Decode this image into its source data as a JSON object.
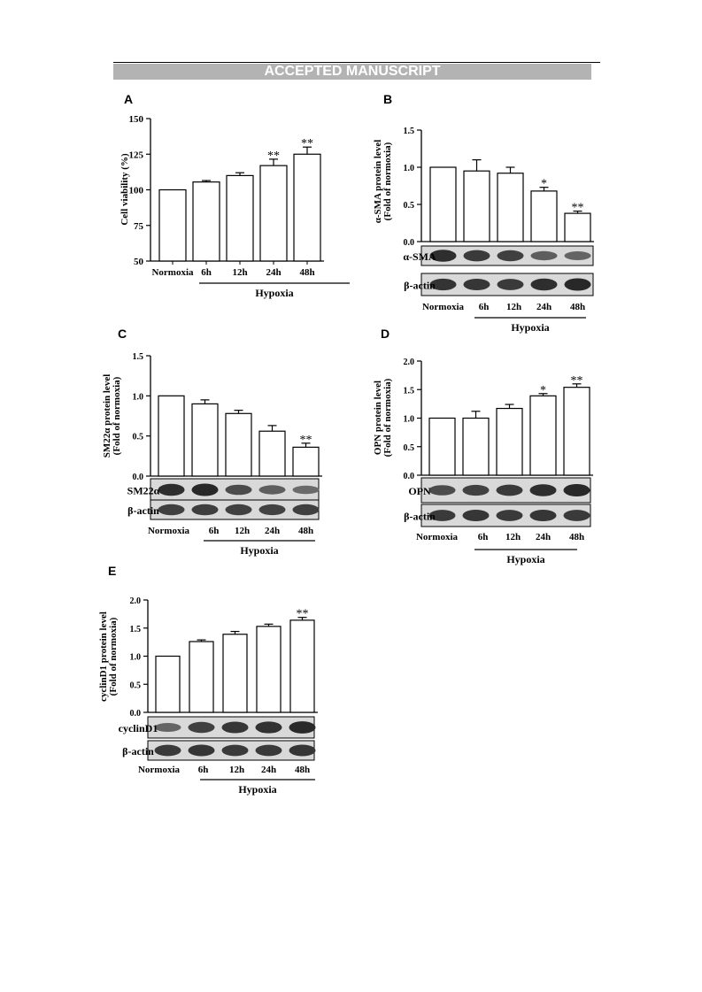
{
  "header": {
    "banner": "ACCEPTED MANUSCRIPT"
  },
  "chart_data": [
    {
      "panel": "A",
      "type": "bar",
      "ylabel": "Cell viability (%)",
      "ylim": [
        50,
        150
      ],
      "yticks": [
        "50",
        "75",
        "100",
        "125",
        "150"
      ],
      "categories": [
        "Normoxia",
        "6h",
        "12h",
        "24h",
        "48h"
      ],
      "values": [
        100,
        105.5,
        110,
        117,
        125
      ],
      "errors": [
        0,
        1,
        2,
        4.5,
        5
      ],
      "significance": [
        "",
        "",
        "",
        "**",
        "**"
      ],
      "group_label": "Hypoxia"
    },
    {
      "panel": "B",
      "type": "bar",
      "ylabel": [
        "α-SMA protein level",
        "(Fold of normoxia)"
      ],
      "ylim": [
        0,
        1.5
      ],
      "yticks": [
        "0.0",
        "0.5",
        "1.0",
        "1.5"
      ],
      "categories": [
        "Normoxia",
        "6h",
        "12h",
        "24h",
        "48h"
      ],
      "values": [
        1.0,
        0.95,
        0.92,
        0.68,
        0.38
      ],
      "errors": [
        0,
        0.15,
        0.08,
        0.05,
        0.03
      ],
      "significance": [
        "",
        "",
        "",
        "*",
        "**"
      ],
      "blots": [
        "α-SMA",
        "β-actin"
      ],
      "group_label": "Hypoxia"
    },
    {
      "panel": "C",
      "type": "bar",
      "ylabel": [
        "SM22α protein level",
        "(Fold of normoxia)"
      ],
      "ylim": [
        0,
        1.5
      ],
      "yticks": [
        "0.0",
        "0.5",
        "1.0",
        "1.5"
      ],
      "categories": [
        "Normoxia",
        "6h",
        "12h",
        "24h",
        "48h"
      ],
      "values": [
        1.0,
        0.9,
        0.78,
        0.56,
        0.36
      ],
      "errors": [
        0,
        0.05,
        0.04,
        0.07,
        0.05
      ],
      "significance": [
        "",
        "",
        "",
        "",
        "**"
      ],
      "blots": [
        "SM22α",
        "β-actin"
      ],
      "group_label": "Hypoxia"
    },
    {
      "panel": "D",
      "type": "bar",
      "ylabel": [
        "OPN protein level",
        "(Fold of normoxia)"
      ],
      "ylim": [
        0,
        2.0
      ],
      "yticks": [
        "0.0",
        "0.5",
        "1.0",
        "1.5",
        "2.0"
      ],
      "categories": [
        "Normoxia",
        "6h",
        "12h",
        "24h",
        "48h"
      ],
      "values": [
        1.0,
        1.0,
        1.17,
        1.39,
        1.54
      ],
      "errors": [
        0,
        0.12,
        0.07,
        0.04,
        0.06
      ],
      "significance": [
        "",
        "",
        "",
        "*",
        "**"
      ],
      "blots": [
        "OPN",
        "β-actin"
      ],
      "group_label": "Hypoxia"
    },
    {
      "panel": "E",
      "type": "bar",
      "ylabel": [
        "cyclinD1 protein level",
        "(Fold of normoxia)"
      ],
      "ylim": [
        0,
        2.0
      ],
      "yticks": [
        "0.0",
        "0.5",
        "1.0",
        "1.5",
        "2.0"
      ],
      "categories": [
        "Normoxia",
        "6h",
        "12h",
        "24h",
        "48h"
      ],
      "values": [
        1.0,
        1.26,
        1.39,
        1.53,
        1.64
      ],
      "errors": [
        0,
        0.03,
        0.05,
        0.04,
        0.05
      ],
      "significance": [
        "",
        "",
        "",
        "",
        "**"
      ],
      "blots": [
        "cyclinD1",
        "β-actin"
      ],
      "group_label": "Hypoxia"
    }
  ],
  "blot_intensity": {
    "B": [
      [
        0.95,
        0.85,
        0.8,
        0.55,
        0.5
      ],
      [
        0.9,
        0.88,
        0.85,
        0.95,
        1.0
      ]
    ],
    "C": [
      [
        0.95,
        1.0,
        0.7,
        0.55,
        0.45
      ],
      [
        0.8,
        0.82,
        0.8,
        0.78,
        0.8
      ]
    ],
    "D": [
      [
        0.7,
        0.78,
        0.85,
        0.95,
        1.0
      ],
      [
        0.85,
        0.88,
        0.85,
        0.88,
        0.85
      ]
    ],
    "E": [
      [
        0.5,
        0.8,
        0.88,
        0.92,
        0.98
      ],
      [
        0.85,
        0.88,
        0.85,
        0.85,
        0.88
      ]
    ]
  }
}
